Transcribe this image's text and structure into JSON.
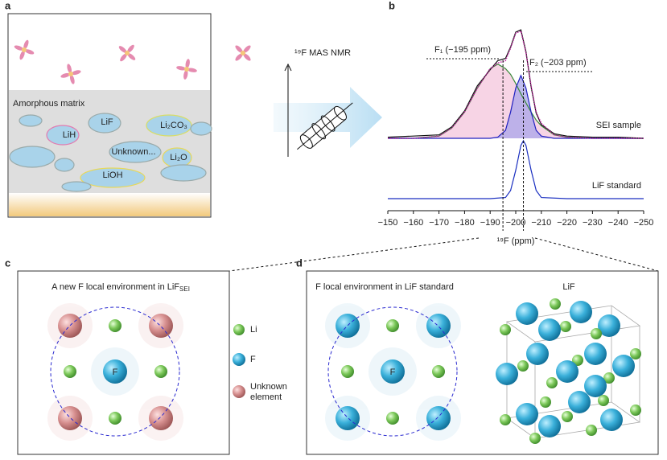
{
  "panel_labels": [
    "a",
    "b",
    "c",
    "d"
  ],
  "panel_a": {
    "matrix_label": "Amorphous matrix",
    "species": [
      "LiF",
      "LiH",
      "Li₂CO₃",
      "Unknown...",
      "Li₂O",
      "LiOH"
    ]
  },
  "arrow_label": "¹⁹F MAS NMR",
  "chart_data": [
    {
      "type": "line",
      "label": "SEI sample",
      "annotations": [
        "F₁ (−195 ppm)",
        "F₂ (−203 ppm)"
      ],
      "x": [
        -150,
        -160,
        -170,
        -175,
        -180,
        -185,
        -190,
        -193,
        -196,
        -198,
        -200,
        -202,
        -204,
        -206,
        -208,
        -210,
        -215,
        -220,
        -230,
        -240,
        -250
      ],
      "xlim": [
        -150,
        -250
      ],
      "ylim": [
        0,
        1
      ],
      "series": [
        {
          "color": "#3a8a3a",
          "fill": "#f4c6dc",
          "values": [
            0,
            0,
            0.02,
            0.09,
            0.23,
            0.44,
            0.61,
            0.65,
            0.61,
            0.56,
            0.48,
            0.39,
            0.31,
            0.23,
            0.16,
            0.11,
            0.03,
            0.01,
            0,
            0,
            0
          ]
        },
        {
          "color": "#2020c0",
          "fill": "#a9a5ea",
          "values": [
            0,
            0,
            0,
            0,
            0,
            0,
            0,
            0.01,
            0.07,
            0.23,
            0.44,
            0.55,
            0.44,
            0.23,
            0.07,
            0.02,
            0,
            0,
            0,
            0,
            0
          ]
        },
        {
          "color": "#111111",
          "values": [
            0.01,
            0.02,
            0.03,
            0.1,
            0.24,
            0.46,
            0.6,
            0.68,
            0.7,
            0.8,
            0.93,
            0.95,
            0.76,
            0.45,
            0.22,
            0.12,
            0.04,
            0.02,
            0.01,
            0.01,
            0
          ]
        },
        {
          "color": "#c020a0",
          "style": "dotted",
          "values": [
            0,
            0,
            0.02,
            0.09,
            0.23,
            0.44,
            0.61,
            0.66,
            0.68,
            0.79,
            0.92,
            0.94,
            0.75,
            0.46,
            0.23,
            0.13,
            0.03,
            0.01,
            0,
            0,
            0
          ]
        }
      ]
    },
    {
      "type": "line",
      "label": "LiF standard",
      "xlabel": "¹⁹F (ppm)",
      "x": [
        -150,
        -170,
        -190,
        -196,
        -198,
        -200,
        -202,
        -203,
        -204,
        -206,
        -208,
        -210,
        -220,
        -240,
        -250
      ],
      "xlim": [
        -150,
        -250
      ],
      "ylim": [
        0,
        1
      ],
      "xticks": [
        {
          "value": -150,
          "label": "−150"
        },
        {
          "value": -160,
          "label": "−160"
        },
        {
          "value": -170,
          "label": "−170"
        },
        {
          "value": -180,
          "label": "−180"
        },
        {
          "value": -190,
          "label": "−190"
        },
        {
          "value": -200,
          "label": "−200"
        },
        {
          "value": -210,
          "label": "−210"
        },
        {
          "value": -220,
          "label": "−220"
        },
        {
          "value": -230,
          "label": "−230"
        },
        {
          "value": -240,
          "label": "−240"
        },
        {
          "value": -250,
          "label": "−250"
        }
      ],
      "vlines": [
        -195,
        -203
      ],
      "series": [
        {
          "color": "#1a2fc0",
          "values": [
            0,
            0,
            0,
            0.02,
            0.14,
            0.49,
            0.92,
            1.0,
            0.92,
            0.49,
            0.14,
            0.02,
            0,
            0,
            0
          ]
        }
      ]
    }
  ],
  "panel_c": {
    "title": "A new F local environment in LiF",
    "title_sub": "SEI",
    "center_atom": "F",
    "legend": [
      "Li",
      "F",
      "Unknown element"
    ]
  },
  "panel_d": {
    "title": "F local environment in LiF standard",
    "center_atom": "F",
    "structure_label": "LiF"
  }
}
